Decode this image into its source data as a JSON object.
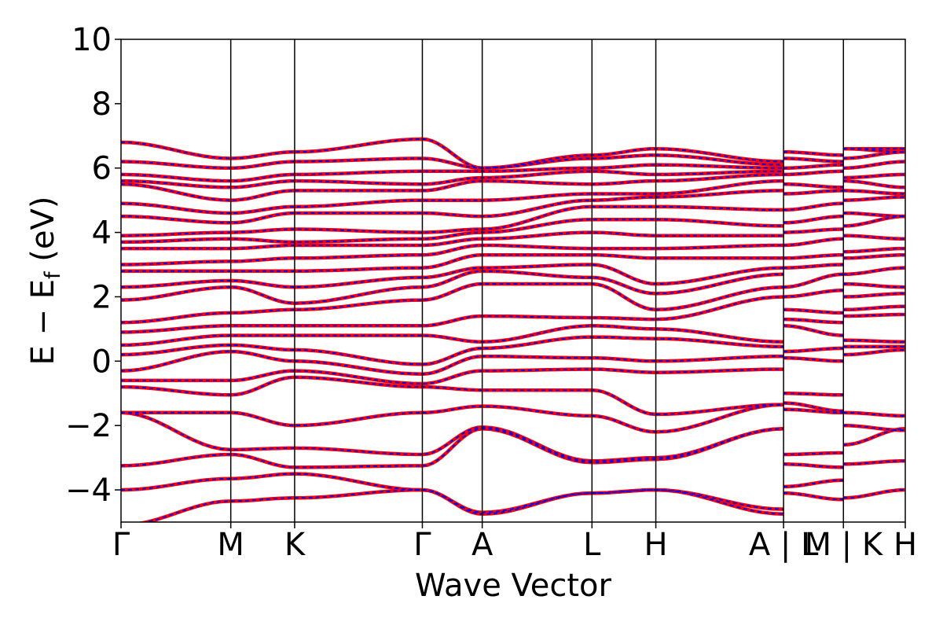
{
  "chart_data": {
    "type": "line",
    "title": "",
    "xlabel": "Wave Vector",
    "ylabel": "E − E",
    "ylabel_sub": "f",
    "ylabel_unit": " (eV)",
    "ylim": [
      -5,
      10
    ],
    "yticks": [
      -4,
      -2,
      0,
      2,
      4,
      6,
      8,
      10
    ],
    "ytick_labels": [
      "−4",
      "−2",
      "0",
      "2",
      "4",
      "6",
      "8",
      "10"
    ],
    "xlim": [
      0,
      7.86
    ],
    "kpoints": [
      {
        "label": "Γ",
        "x": 0
      },
      {
        "label": "M",
        "x": 1.1
      },
      {
        "label": "K",
        "x": 1.74
      },
      {
        "label": "Γ",
        "x": 3.02
      },
      {
        "label": "A",
        "x": 3.62
      },
      {
        "label": "L",
        "x": 4.72
      },
      {
        "label": "H",
        "x": 5.36
      },
      {
        "label": "A | L",
        "x": 6.64
      },
      {
        "label": "M | K",
        "x": 7.24
      },
      {
        "label": "H",
        "x": 7.86
      }
    ],
    "segments": [
      {
        "x": [
          0,
          1.1,
          1.74,
          3.02,
          3.62,
          4.72,
          5.36,
          6.64
        ]
      },
      {
        "x": [
          6.64,
          7.24
        ]
      },
      {
        "x": [
          7.24,
          7.86
        ]
      }
    ],
    "series": [
      {
        "name": "",
        "color": "#ff0000",
        "style": "solid",
        "bands": [
          [
            [
              -5.1,
              -4.35,
              -4.25,
              -4.0,
              -4.75,
              -4.1,
              -4.0,
              -4.75
            ],
            [
              -4.1,
              -4.3
            ],
            [
              -4.25,
              -4.0
            ]
          ],
          [
            [
              -4.0,
              -3.65,
              -3.5,
              -4.0,
              -4.7,
              -4.1,
              -4.0,
              -4.6
            ],
            [
              -3.9,
              -3.7
            ],
            [
              -3.2,
              -3.1
            ]
          ],
          [
            [
              -3.25,
              -2.9,
              -3.3,
              -3.25,
              -2.1,
              -3.15,
              -3.05,
              -2.1
            ],
            [
              -3.2,
              -3.3
            ],
            [
              -2.6,
              -2.1
            ]
          ],
          [
            [
              -1.6,
              -2.75,
              -2.7,
              -2.9,
              -2.05,
              -3.1,
              -3.0,
              -2.1
            ],
            [
              -2.9,
              -2.85
            ],
            [
              -2.0,
              -2.15
            ]
          ],
          [
            [
              -1.6,
              -1.6,
              -2.0,
              -1.6,
              -1.4,
              -1.7,
              -2.2,
              -1.35
            ],
            [
              -1.5,
              -1.6
            ],
            [
              -1.6,
              -1.7
            ]
          ],
          [
            [
              -0.8,
              -1.05,
              -0.5,
              -0.8,
              -0.9,
              -0.9,
              -1.65,
              -1.35
            ],
            [
              -1.3,
              -1.55
            ],
            [
              0.2,
              0.35
            ]
          ],
          [
            [
              -0.6,
              -0.6,
              -0.3,
              -0.7,
              -0.3,
              -0.25,
              -0.35,
              -0.25
            ],
            [
              -1.0,
              -1.05
            ],
            [
              0.45,
              0.45
            ]
          ],
          [
            [
              -0.3,
              0.3,
              0.0,
              -0.4,
              0.15,
              0.1,
              0.0,
              0.15
            ],
            [
              0.1,
              0.0
            ],
            [
              0.65,
              0.6
            ]
          ],
          [
            [
              0.2,
              0.5,
              0.35,
              -0.1,
              0.4,
              0.75,
              0.7,
              0.45
            ],
            [
              0.3,
              0.4
            ],
            [
              1.4,
              1.45
            ]
          ],
          [
            [
              0.5,
              0.8,
              0.8,
              0.8,
              0.6,
              1.1,
              1.0,
              0.6
            ],
            [
              1.1,
              0.8
            ],
            [
              1.6,
              1.7
            ]
          ],
          [
            [
              0.9,
              1.1,
              1.1,
              1.1,
              1.4,
              1.35,
              1.3,
              2.0
            ],
            [
              1.3,
              1.2
            ],
            [
              2.0,
              2.1
            ]
          ],
          [
            [
              1.2,
              1.5,
              1.6,
              1.9,
              2.4,
              2.4,
              1.6,
              2.3
            ],
            [
              1.6,
              1.5
            ],
            [
              2.4,
              2.3
            ]
          ],
          [
            [
              1.9,
              2.3,
              1.8,
              2.3,
              2.8,
              2.6,
              2.1,
              2.7
            ],
            [
              2.0,
              2.2
            ],
            [
              2.7,
              2.9
            ]
          ],
          [
            [
              2.3,
              2.5,
              2.3,
              2.6,
              2.9,
              3.0,
              2.4,
              2.9
            ],
            [
              2.3,
              2.7
            ],
            [
              3.2,
              3.3
            ]
          ],
          [
            [
              2.8,
              2.8,
              2.8,
              2.9,
              3.3,
              3.3,
              3.2,
              3.2
            ],
            [
              2.9,
              3.0
            ],
            [
              3.4,
              3.5
            ]
          ],
          [
            [
              3.0,
              3.1,
              3.2,
              3.3,
              3.6,
              3.5,
              3.5,
              3.6
            ],
            [
              3.2,
              3.3
            ],
            [
              3.9,
              3.8
            ]
          ],
          [
            [
              3.5,
              3.5,
              3.6,
              3.6,
              3.8,
              4.0,
              3.9,
              3.9
            ],
            [
              3.6,
              3.8
            ],
            [
              4.2,
              4.5
            ]
          ],
          [
            [
              3.7,
              3.8,
              3.7,
              3.8,
              4.0,
              4.4,
              4.4,
              4.2
            ],
            [
              4.0,
              4.1
            ],
            [
              4.6,
              4.5
            ]
          ],
          [
            [
              3.9,
              4.0,
              4.1,
              4.0,
              4.1,
              4.8,
              4.8,
              4.7
            ],
            [
              4.3,
              4.5
            ],
            [
              5.0,
              5.1
            ]
          ],
          [
            [
              4.5,
              4.3,
              4.6,
              4.6,
              4.5,
              5.0,
              5.1,
              5.3
            ],
            [
              4.7,
              4.9
            ],
            [
              5.3,
              5.2
            ]
          ],
          [
            [
              4.9,
              4.6,
              4.8,
              5.0,
              5.0,
              5.2,
              5.2,
              5.6
            ],
            [
              5.2,
              5.3
            ],
            [
              5.6,
              5.4
            ]
          ],
          [
            [
              5.5,
              5.0,
              5.3,
              5.3,
              5.6,
              5.5,
              5.6,
              5.8
            ],
            [
              5.5,
              5.4
            ],
            [
              5.7,
              5.8
            ]
          ],
          [
            [
              5.6,
              5.4,
              5.6,
              5.5,
              5.7,
              5.9,
              5.8,
              5.9
            ],
            [
              5.8,
              5.9
            ],
            [
              6.0,
              6.2
            ]
          ],
          [
            [
              5.8,
              5.6,
              5.8,
              5.9,
              5.9,
              6.0,
              6.1,
              6.0
            ],
            [
              6.0,
              6.1
            ],
            [
              6.3,
              6.5
            ]
          ],
          [
            [
              6.2,
              6.0,
              6.2,
              6.3,
              6.0,
              6.3,
              6.4,
              6.1
            ],
            [
              6.3,
              6.2
            ],
            [
              6.6,
              6.6
            ]
          ],
          [
            [
              6.8,
              6.3,
              6.5,
              6.9,
              6.0,
              6.4,
              6.6,
              6.2
            ],
            [
              6.5,
              6.4
            ],
            [
              6.6,
              6.5
            ]
          ]
        ]
      },
      {
        "name": "",
        "color": "#0000ff",
        "style": "dashed",
        "bands": "same"
      }
    ]
  }
}
